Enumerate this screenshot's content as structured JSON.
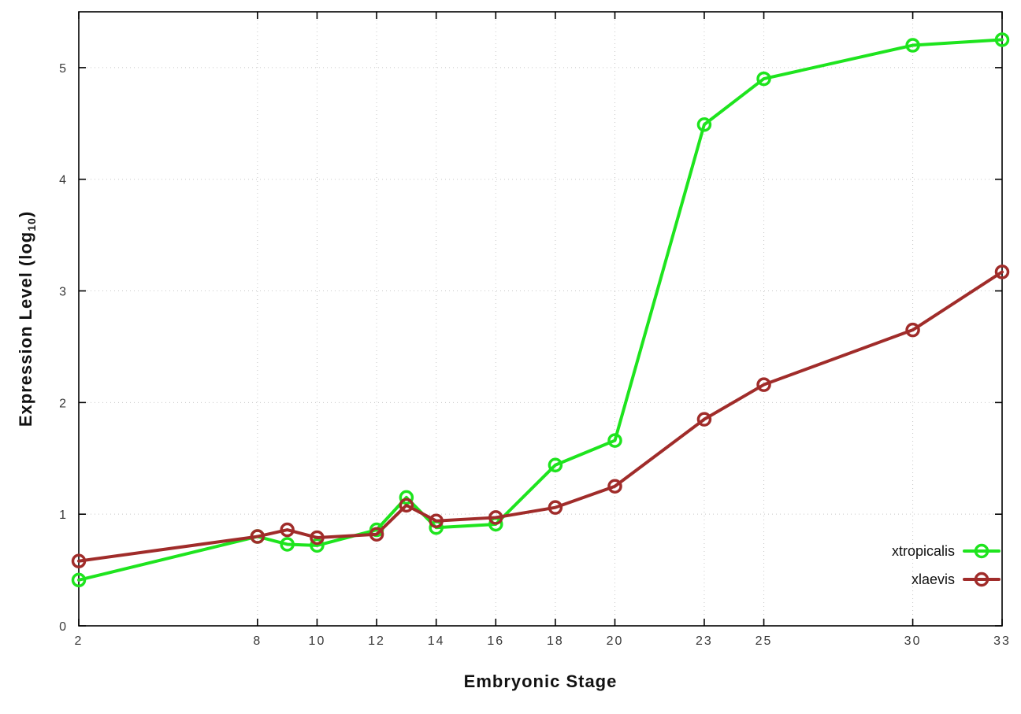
{
  "chart_data": {
    "type": "line",
    "title": "",
    "xlabel": "Embryonic Stage",
    "ylabel": "Expression Level (log10)",
    "ylabel_parts": {
      "prefix": "Expression Level (log",
      "sub": "10",
      "suffix": ")"
    },
    "xlim": [
      2,
      33
    ],
    "ylim": [
      0,
      5.5
    ],
    "x_ticks": [
      2,
      8,
      10,
      12,
      14,
      16,
      18,
      20,
      23,
      25,
      30,
      33
    ],
    "y_ticks": [
      0,
      1,
      2,
      3,
      4,
      5
    ],
    "grid": true,
    "legend_position": "inside-right-bottom",
    "x": [
      2,
      8,
      9,
      10,
      12,
      13,
      14,
      16,
      18,
      20,
      23,
      25,
      30,
      33
    ],
    "series": [
      {
        "name": "xtropicalis",
        "color": "#1ee41e",
        "values": [
          0.41,
          0.8,
          0.73,
          0.72,
          0.86,
          1.15,
          0.88,
          0.91,
          1.44,
          1.66,
          4.49,
          4.9,
          5.2,
          5.25
        ]
      },
      {
        "name": "xlaevis",
        "color": "#a02c2a",
        "values": [
          0.58,
          0.8,
          0.86,
          0.79,
          0.82,
          1.08,
          0.94,
          0.97,
          1.06,
          1.25,
          1.85,
          2.16,
          2.65,
          3.17
        ]
      }
    ],
    "styles": {
      "border_color": "#000000",
      "grid_color": "#c8c8c8",
      "tick_label_color": "#3a3a3a",
      "legend_text_color": "#111111",
      "background": "#ffffff"
    }
  }
}
